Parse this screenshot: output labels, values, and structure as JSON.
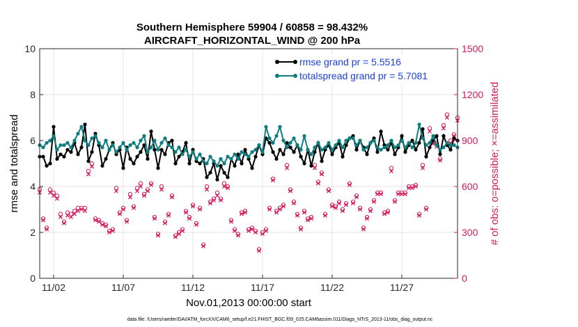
{
  "chart_data": {
    "type": "line",
    "title": "Southern Hemisphere 59904 / 60858 = 98.432%",
    "subtitle": "AIRCRAFT_HORIZONTAL_WIND @ 200 hPa",
    "xlabel": "Nov.01,2013 00:00:00 start",
    "ylabel_left": "rmse and totalspread",
    "ylabel_right": "# of obs: o=possible; ×=assimilated",
    "xlim": [
      0,
      120
    ],
    "ylim_left": [
      0,
      10
    ],
    "ylim_right": [
      0,
      1500
    ],
    "x_ticks": [
      {
        "x": 4,
        "label": "11/02"
      },
      {
        "x": 24,
        "label": "11/07"
      },
      {
        "x": 44,
        "label": "11/12"
      },
      {
        "x": 64,
        "label": "11/17"
      },
      {
        "x": 84,
        "label": "11/22"
      },
      {
        "x": 104,
        "label": "11/27"
      }
    ],
    "y_ticks_left": [
      {
        "v": 0,
        "label": "0"
      },
      {
        "v": 2,
        "label": "2"
      },
      {
        "v": 4,
        "label": "4"
      },
      {
        "v": 6,
        "label": "6"
      },
      {
        "v": 8,
        "label": "8"
      },
      {
        "v": 10,
        "label": "10"
      }
    ],
    "y_ticks_right": [
      {
        "v": 0,
        "label": "0"
      },
      {
        "v": 300,
        "label": "300"
      },
      {
        "v": 600,
        "label": "600"
      },
      {
        "v": 900,
        "label": "900"
      },
      {
        "v": 1200,
        "label": "1200"
      },
      {
        "v": 1500,
        "label": "1500"
      }
    ],
    "grid": true,
    "legend_position": "top-right",
    "series": [
      {
        "name": "rmse",
        "legend": "rmse grand pr = 5.5516",
        "color": "#000000",
        "axis": "left",
        "values": [
          5.3,
          5.3,
          4.9,
          5.0,
          6.6,
          5.2,
          5.4,
          5.3,
          5.6,
          5.5,
          5.9,
          5.4,
          5.7,
          6.7,
          5.1,
          5.5,
          6.3,
          5.8,
          4.9,
          5.2,
          5.6,
          5.9,
          5.4,
          5.6,
          4.8,
          5.7,
          5.2,
          5.0,
          5.3,
          5.5,
          5.8,
          5.2,
          6.4,
          5.6,
          4.8,
          5.6,
          5.4,
          5.9,
          6.0,
          5.0,
          5.3,
          5.5,
          5.9,
          5.0,
          5.6,
          5.1,
          5.0,
          5.2,
          4.4,
          4.6,
          5.0,
          4.3,
          4.9,
          4.6,
          4.4,
          5.2,
          4.9,
          5.4,
          5.0,
          5.6,
          5.2,
          4.8,
          5.3,
          5.8,
          5.4,
          6.1,
          5.9,
          5.5,
          5.2,
          5.6,
          5.4,
          5.9,
          5.7,
          5.5,
          5.8,
          5.3,
          5.0,
          5.6,
          4.9,
          5.5,
          5.9,
          5.1,
          5.6,
          5.8,
          5.4,
          5.7,
          5.9,
          5.3,
          5.8,
          6.1,
          6.2,
          5.6,
          6.0,
          5.7,
          5.4,
          5.9,
          6.1,
          5.5,
          6.4,
          5.8,
          5.6,
          5.9,
          5.4,
          5.7,
          6.2,
          5.5,
          5.8,
          6.0,
          5.6,
          5.9,
          6.5,
          5.3,
          5.7,
          6.0,
          6.2,
          5.4,
          6.2,
          5.8,
          5.6,
          6.1,
          6.0
        ]
      },
      {
        "name": "totalspread",
        "legend": "totalspread grand pr = 5.7081",
        "color": "#0e7d7d",
        "axis": "left",
        "values": [
          5.8,
          5.7,
          5.9,
          6.0,
          6.2,
          5.6,
          5.8,
          5.8,
          5.9,
          5.7,
          6.0,
          6.3,
          6.6,
          6.0,
          5.8,
          6.1,
          6.2,
          5.9,
          5.7,
          6.0,
          5.6,
          5.8,
          5.5,
          5.7,
          5.9,
          5.6,
          5.8,
          5.9,
          5.7,
          6.0,
          6.2,
          5.5,
          5.7,
          6.0,
          5.6,
          5.9,
          6.1,
          5.8,
          5.7,
          5.5,
          5.7,
          5.4,
          5.6,
          5.3,
          5.5,
          5.2,
          5.4,
          5.1,
          5.0,
          5.3,
          5.1,
          4.9,
          5.2,
          5.0,
          5.3,
          5.2,
          5.4,
          5.2,
          5.5,
          5.4,
          5.3,
          5.5,
          5.6,
          5.8,
          5.5,
          6.6,
          6.1,
          5.9,
          6.2,
          6.6,
          6.0,
          5.7,
          5.9,
          6.1,
          5.8,
          5.6,
          6.2,
          5.6,
          5.4,
          5.7,
          5.9,
          5.6,
          5.7,
          5.9,
          5.6,
          5.8,
          6.0,
          5.7,
          6.0,
          6.1,
          6.1,
          5.8,
          6.0,
          5.6,
          5.7,
          5.9,
          6.0,
          5.7,
          5.6,
          5.7,
          5.8,
          6.0,
          5.7,
          5.8,
          6.0,
          5.7,
          5.9,
          5.7,
          5.9,
          6.7,
          6.1,
          5.8,
          5.9,
          6.2,
          5.8,
          5.6,
          5.7,
          5.9,
          5.8,
          5.8,
          5.7
        ]
      },
      {
        "name": "obs_possible",
        "color": "#d6195a",
        "axis": "right",
        "marker": "o",
        "values": [
          583,
          390,
          330,
          580,
          560,
          540,
          420,
          370,
          430,
          420,
          440,
          460,
          460,
          460,
          700,
          750,
          390,
          380,
          360,
          350,
          310,
          320,
          590,
          430,
          460,
          380,
          550,
          470,
          590,
          620,
          550,
          580,
          620,
          400,
          290,
          600,
          370,
          420,
          540,
          280,
          300,
          320,
          440,
          400,
          480,
          360,
          460,
          220,
          600,
          500,
          520,
          560,
          520,
          620,
          600,
          380,
          320,
          290,
          430,
          440,
          320,
          330,
          310,
          190,
          300,
          320,
          460,
          650,
          440,
          460,
          480,
          740,
          580,
          500,
          420,
          330,
          440,
          390,
          400,
          740,
          630,
          690,
          420,
          580,
          480,
          470,
          500,
          450,
          490,
          620,
          500,
          540,
          460,
          330,
          400,
          450,
          510,
          560,
          560,
          430,
          440,
          720,
          510,
          560,
          560,
          560,
          600,
          600,
          610,
          420,
          740,
          460,
          980,
          890,
          880,
          780,
          1000,
          1070,
          900,
          940,
          1050
        ]
      },
      {
        "name": "obs_assimilated",
        "color": "#d6195a",
        "axis": "right",
        "marker": "x",
        "values": [
          560,
          380,
          320,
          560,
          540,
          520,
          400,
          360,
          410,
          400,
          420,
          440,
          450,
          440,
          680,
          730,
          380,
          370,
          350,
          340,
          300,
          310,
          570,
          420,
          450,
          370,
          530,
          460,
          570,
          600,
          540,
          570,
          610,
          390,
          280,
          580,
          360,
          410,
          530,
          270,
          290,
          310,
          430,
          390,
          470,
          350,
          450,
          210,
          580,
          490,
          510,
          540,
          510,
          600,
          590,
          370,
          310,
          280,
          420,
          430,
          310,
          320,
          300,
          180,
          290,
          310,
          450,
          640,
          430,
          450,
          470,
          720,
          570,
          490,
          410,
          320,
          430,
          380,
          390,
          720,
          620,
          680,
          410,
          570,
          470,
          460,
          490,
          440,
          480,
          610,
          490,
          530,
          450,
          320,
          390,
          440,
          500,
          550,
          550,
          420,
          430,
          700,
          500,
          550,
          550,
          550,
          590,
          590,
          600,
          410,
          720,
          450,
          960,
          880,
          860,
          770,
          980,
          1050,
          880,
          930,
          1030
        ]
      }
    ]
  },
  "footer": "data file: /Users/raeder/DAI/ATM_forcXX/CAM6_setup/f.e21.FHIST_BGC.f09_025.CAM6assim.011/Diags_NTrS_2013-11/obs_diag_output.nc"
}
